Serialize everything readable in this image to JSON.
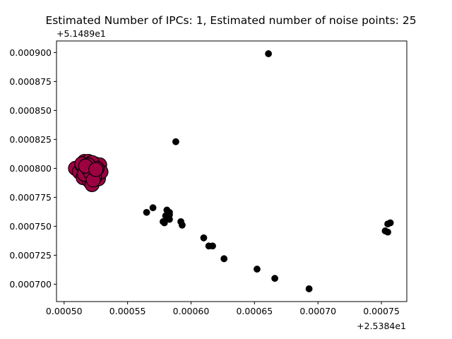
{
  "chart_data": {
    "type": "scatter",
    "title": "Estimated Number of IPCs: 1, Estimated number of noise points: 25",
    "x_offset_label": "+2.5384e1",
    "y_offset_label": "+5.1489e1",
    "xlim": [
      0.000494,
      0.00077
    ],
    "ylim": [
      0.000685,
      0.00091
    ],
    "x_ticks": [
      0.0005,
      0.00055,
      0.0006,
      0.00065,
      0.0007,
      0.00075
    ],
    "x_tick_labels": [
      "0.00050",
      "0.00055",
      "0.00060",
      "0.00065",
      "0.00070",
      "0.00075"
    ],
    "y_ticks": [
      0.0007,
      0.000725,
      0.00075,
      0.000775,
      0.0008,
      0.000825,
      0.00085,
      0.000875,
      0.0009
    ],
    "y_tick_labels": [
      "0.000700",
      "0.000725",
      "0.000750",
      "0.000775",
      "0.000800",
      "0.000825",
      "0.000850",
      "0.000875",
      "0.000900"
    ],
    "grid": false,
    "series": [
      {
        "color": "#9e0142",
        "marker_size": "large",
        "x": [
          0.000509,
          0.000512,
          0.000514,
          0.000515,
          0.000516,
          0.000517,
          0.000518,
          0.000519,
          0.00052,
          0.000521,
          0.000522,
          0.000523,
          0.000524,
          0.000525,
          0.000526,
          0.000527,
          0.000528,
          0.000529,
          0.000514,
          0.000516,
          0.000518,
          0.00052,
          0.000522,
          0.000524,
          0.000526,
          0.000519,
          0.000521,
          0.000523,
          0.000517,
          0.000525
        ],
        "y": [
          0.0008,
          0.000797,
          0.000803,
          0.000792,
          0.000806,
          0.000799,
          0.000795,
          0.000806,
          0.000789,
          0.000803,
          0.000786,
          0.000798,
          0.000804,
          0.000794,
          0.000801,
          0.000791,
          0.000803,
          0.000797,
          0.000804,
          0.000795,
          0.000801,
          0.000798,
          0.000805,
          0.000792,
          0.0008,
          0.000803,
          0.000796,
          0.00079,
          0.000802,
          0.000799
        ]
      },
      {
        "color": "#000000",
        "marker_size": "small",
        "x": [
          0.000661,
          0.000588,
          0.000565,
          0.00057,
          0.000581,
          0.000583,
          0.000582,
          0.00058,
          0.000583,
          0.000578,
          0.000579,
          0.000592,
          0.000593,
          0.00061,
          0.000614,
          0.000617,
          0.000626,
          0.000652,
          0.000666,
          0.000693,
          0.000753,
          0.000755,
          0.000757,
          0.000755,
          0.000583
        ],
        "y": [
          0.000899,
          0.000823,
          0.000762,
          0.000766,
          0.000764,
          0.000762,
          0.000757,
          0.000759,
          0.000756,
          0.000754,
          0.000753,
          0.000754,
          0.000751,
          0.00074,
          0.000733,
          0.000733,
          0.000722,
          0.000713,
          0.000705,
          0.000696,
          0.000746,
          0.000752,
          0.000753,
          0.000745,
          0.00076
        ]
      }
    ]
  }
}
